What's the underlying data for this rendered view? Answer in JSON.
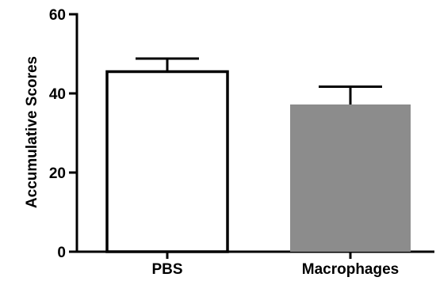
{
  "chart_data": {
    "type": "bar",
    "categories": [
      "PBS",
      "Macrophages"
    ],
    "values": [
      45.5,
      37.2
    ],
    "errors": [
      3.3,
      4.5
    ],
    "bar_colors": [
      "#ffffff",
      "#8c8c8c"
    ],
    "edge_color": "#000000",
    "xlabel": "",
    "ylabel": "Accumulative Scores",
    "ylim": [
      0,
      60
    ],
    "yticks": [
      0,
      20,
      40,
      60
    ],
    "grid": false
  }
}
